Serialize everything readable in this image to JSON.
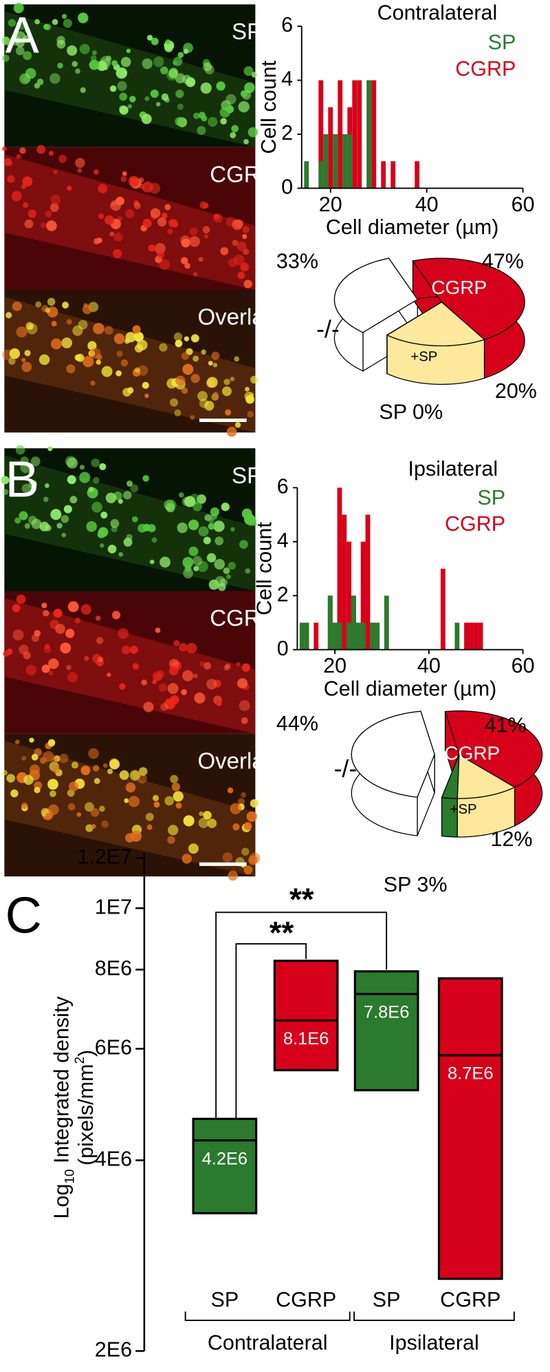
{
  "panels": [
    {
      "label": "A",
      "images": [
        "SP",
        "CGRP",
        "Overlay"
      ]
    },
    {
      "label": "B",
      "images": [
        "SP",
        "CGRP",
        "Overlay"
      ]
    }
  ],
  "chart_data": [
    {
      "type": "histogram",
      "title": "Contralateral",
      "xlabel": "Cell diameter (µm)",
      "ylabel": "Cell count",
      "x": [
        15,
        18,
        19,
        20,
        21,
        22,
        23,
        24,
        25,
        26,
        28,
        29,
        31,
        33,
        38
      ],
      "series": [
        {
          "name": "SP",
          "color": "#2b7a2e",
          "values": [
            1,
            1,
            2,
            0,
            2,
            0,
            2,
            2,
            0,
            0,
            4,
            0,
            0,
            0,
            0
          ]
        },
        {
          "name": "CGRP",
          "color": "#d7001a",
          "values": [
            0,
            4,
            2,
            3,
            2,
            4,
            2,
            3,
            4,
            4,
            4,
            4,
            1,
            1,
            1
          ]
        }
      ],
      "xlim": [
        14,
        60
      ],
      "xticks": [
        20,
        40,
        60
      ],
      "ylim": [
        0,
        6
      ],
      "yticks": [
        0,
        2,
        4,
        6
      ]
    },
    {
      "type": "pie",
      "categories": [
        "-/-",
        "CGRP",
        "+SP",
        null
      ],
      "values": [
        33,
        47,
        20,
        0
      ],
      "value_labels": [
        "33%",
        "47%",
        "20%",
        "SP 0%"
      ],
      "colors": [
        "#ffffff",
        "#d7001a",
        "#fde89b",
        "#2b7a2e"
      ]
    },
    {
      "type": "histogram",
      "title": "Ipsilateral",
      "xlabel": "Cell diameter (µm)",
      "ylabel": "Cell count",
      "x": [
        13,
        14,
        16,
        19,
        20,
        21,
        22,
        23,
        24,
        25,
        26,
        27,
        28,
        29,
        31,
        43,
        46,
        48,
        49,
        50,
        51
      ],
      "series": [
        {
          "name": "SP",
          "color": "#2b7a2e",
          "values": [
            1,
            1,
            0,
            2,
            1,
            1,
            0,
            1,
            2,
            1,
            1,
            0,
            1,
            1,
            2,
            0,
            1,
            0,
            0,
            0,
            0
          ]
        },
        {
          "name": "CGRP",
          "color": "#d7001a",
          "values": [
            0,
            1,
            1,
            2,
            0,
            6,
            5,
            4,
            2,
            0,
            4,
            5,
            0,
            1,
            0,
            3,
            0,
            1,
            1,
            1,
            1
          ]
        }
      ],
      "xlim": [
        12,
        60
      ],
      "xticks": [
        20,
        40,
        60
      ],
      "ylim": [
        0,
        6
      ],
      "yticks": [
        0,
        2,
        4,
        6
      ]
    },
    {
      "type": "pie",
      "categories": [
        "-/-",
        "CGRP",
        "+SP",
        null
      ],
      "values": [
        44,
        41,
        12,
        3
      ],
      "value_labels": [
        "44%",
        "41%",
        "12%",
        "SP 3%"
      ],
      "colors": [
        "#ffffff",
        "#d7001a",
        "#fde89b",
        "#2b7a2e"
      ]
    },
    {
      "type": "box",
      "panel_label": "C",
      "ylabel": [
        "Log",
        "10",
        " Integrated density",
        "(pixels/mm",
        "2",
        ")"
      ],
      "categories": [
        "SP",
        "CGRP",
        "SP",
        "CGRP"
      ],
      "groups": [
        "Contralateral",
        "Ipsilateral"
      ],
      "colors": [
        "#2b7a2e",
        "#d7001a",
        "#2b7a2e",
        "#d7001a"
      ],
      "low": [
        3300000,
        5550000,
        5160000,
        2600000
      ],
      "median": [
        4300000,
        6650000,
        7320000,
        5860000
      ],
      "high": [
        4650000,
        8260000,
        7950000,
        7750000
      ],
      "values": [
        4200000,
        8100000,
        7800000,
        8700000
      ],
      "value_labels": [
        "4.2E6",
        "8.1E6",
        "7.8E6",
        "8.7E6"
      ],
      "annotations": [
        "**",
        "**"
      ],
      "log_y": true,
      "ylim": [
        2000000,
        12000000
      ],
      "yticks": [
        {
          "value": 2000000,
          "label": "2E6"
        },
        {
          "value": 4000000,
          "label": "4E6"
        },
        {
          "value": 6000000,
          "label": "6E6"
        },
        {
          "value": 8000000,
          "label": "8E6"
        },
        {
          "value": 10000000,
          "label": "1E7"
        },
        {
          "value": 12000000,
          "label": "1.2E7"
        }
      ]
    }
  ]
}
